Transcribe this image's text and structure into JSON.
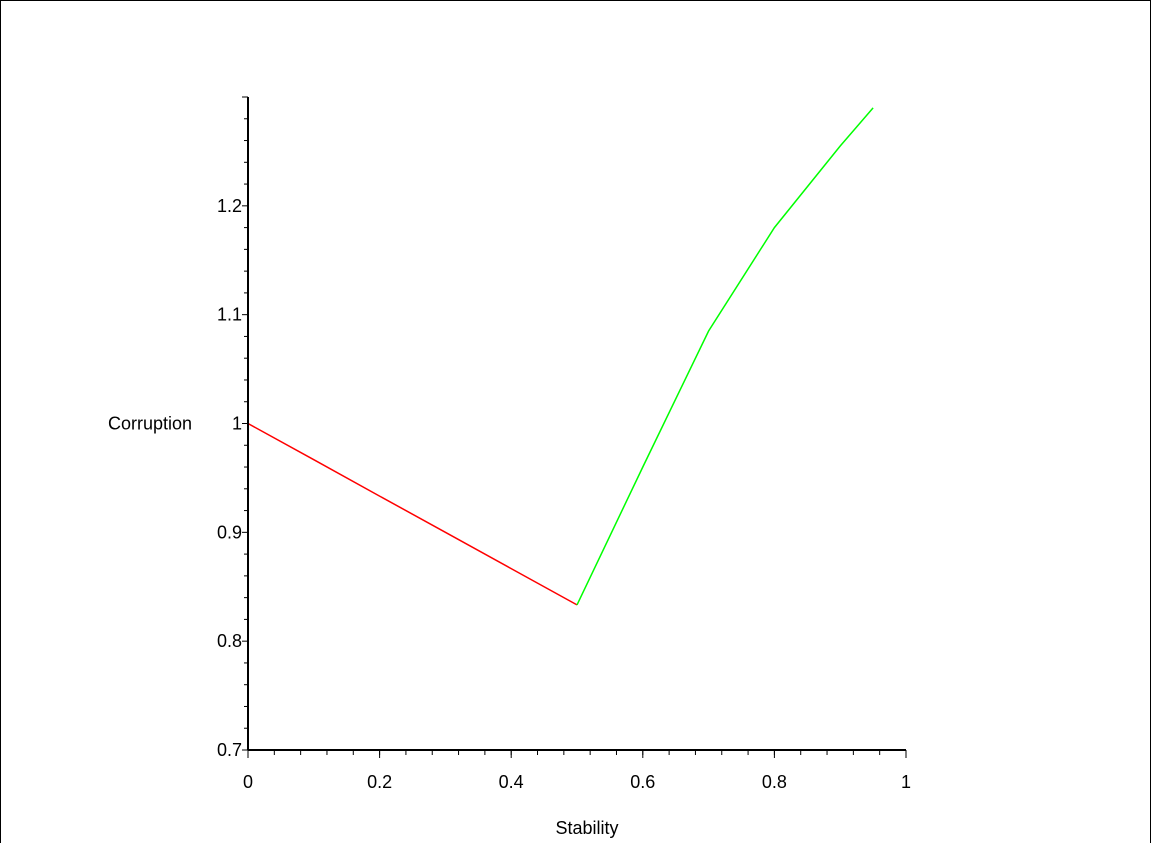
{
  "chart_data": {
    "type": "line",
    "title": "",
    "xlabel": "Stability",
    "ylabel": "Corruption",
    "xlim": [
      0,
      1
    ],
    "ylim": [
      0.7,
      1.3
    ],
    "x_ticks": [
      {
        "value": 0,
        "label": "0"
      },
      {
        "value": 0.2,
        "label": "0.2"
      },
      {
        "value": 0.4,
        "label": "0.4"
      },
      {
        "value": 0.6,
        "label": "0.6"
      },
      {
        "value": 0.8,
        "label": "0.8"
      },
      {
        "value": 1,
        "label": "1"
      }
    ],
    "y_ticks": [
      {
        "value": 0.7,
        "label": "0.7"
      },
      {
        "value": 0.8,
        "label": "0.8"
      },
      {
        "value": 0.9,
        "label": "0.9"
      },
      {
        "value": 1.0,
        "label": "1"
      },
      {
        "value": 1.1,
        "label": "1.1"
      },
      {
        "value": 1.2,
        "label": "1.2"
      }
    ],
    "grid": false,
    "legend": "none",
    "series": [
      {
        "color": "#ff0000",
        "x": [
          0,
          0.1,
          0.2,
          0.3,
          0.4,
          0.5
        ],
        "y": [
          1.0,
          0.9667,
          0.9333,
          0.9,
          0.8667,
          0.8333
        ]
      },
      {
        "color": "#00ff00",
        "x": [
          0.5,
          0.6,
          0.7,
          0.8,
          0.9,
          0.95
        ],
        "y": [
          0.8333,
          0.96,
          1.085,
          1.18,
          1.255,
          1.29
        ]
      }
    ]
  }
}
